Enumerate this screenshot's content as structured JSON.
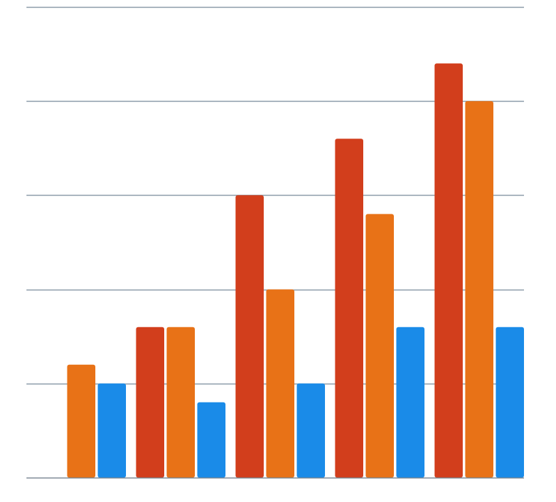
{
  "chart_data": {
    "type": "bar",
    "categories": [
      "",
      "",
      "",
      "",
      ""
    ],
    "series": [
      {
        "values": [
          0,
          4,
          7.5,
          9,
          11
        ]
      },
      {
        "values": [
          3,
          4,
          5,
          7,
          10
        ]
      },
      {
        "values": [
          2.5,
          2,
          2.5,
          4,
          4
        ]
      }
    ],
    "ylim": [
      0,
      12.5
    ],
    "yticks": [
      0,
      2.5,
      5,
      7.5,
      10,
      12.5
    ],
    "grid": true,
    "legend": "none",
    "colors": [
      "#d23e1c",
      "#e87217",
      "#1a8be8"
    ],
    "gridline_color": "#8a9aa8",
    "axis_color": "#7a8794"
  }
}
